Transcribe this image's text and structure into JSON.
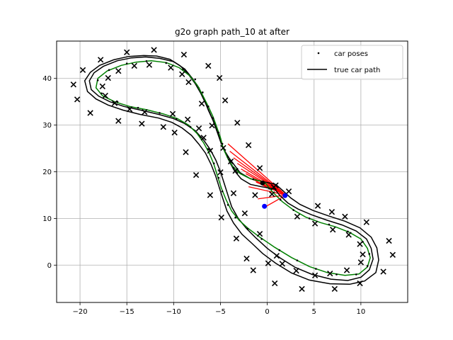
{
  "chart_data": {
    "type": "scatter",
    "title": "g2o graph path_10 at after",
    "xlabel": "",
    "ylabel": "",
    "xlim": [
      -22.5,
      15
    ],
    "ylim": [
      -8,
      48
    ],
    "xticks": [
      -20,
      -15,
      -10,
      -5,
      0,
      5,
      10
    ],
    "yticks": [
      0,
      10,
      20,
      30,
      40
    ],
    "grid": true,
    "legend": {
      "placement": "top-right",
      "entries": [
        "car poses",
        "true car path"
      ]
    },
    "colors": {
      "true_path": "#000000",
      "estimated_path": "#008000",
      "constraints": "#ff0000",
      "poses": "#000000",
      "landmarks": "#000000",
      "highlight_poses": "#0000ff",
      "grid": "#b0b0b0"
    },
    "true_path": [
      [
        0.8,
        16.3
      ],
      [
        -0.6,
        16.8
      ],
      [
        -1.8,
        17.3
      ],
      [
        -2.8,
        18.5
      ],
      [
        -3.5,
        20.2
      ],
      [
        -4.0,
        22.0
      ],
      [
        -4.5,
        24.2
      ],
      [
        -5.0,
        26.5
      ],
      [
        -5.4,
        28.8
      ],
      [
        -5.8,
        31.0
      ],
      [
        -6.3,
        33.2
      ],
      [
        -6.8,
        35.8
      ],
      [
        -7.3,
        38.0
      ],
      [
        -8.0,
        40.0
      ],
      [
        -8.8,
        42.0
      ],
      [
        -10.0,
        43.6
      ],
      [
        -11.5,
        44.3
      ],
      [
        -13.0,
        44.6
      ],
      [
        -14.5,
        44.4
      ],
      [
        -16.0,
        43.8
      ],
      [
        -17.5,
        42.6
      ],
      [
        -18.5,
        41.2
      ],
      [
        -19.0,
        39.5
      ],
      [
        -18.8,
        37.6
      ],
      [
        -18.0,
        36.2
      ],
      [
        -16.8,
        35.0
      ],
      [
        -15.3,
        34.0
      ],
      [
        -13.5,
        33.2
      ],
      [
        -11.6,
        32.3
      ],
      [
        -10.0,
        31.4
      ],
      [
        -8.8,
        30.3
      ],
      [
        -7.7,
        28.8
      ],
      [
        -6.8,
        26.8
      ],
      [
        -6.1,
        24.8
      ],
      [
        -5.5,
        22.5
      ],
      [
        -5.0,
        20.0
      ],
      [
        -4.6,
        17.5
      ],
      [
        -4.2,
        15.0
      ],
      [
        -3.8,
        12.5
      ],
      [
        -3.1,
        10.0
      ],
      [
        -2.2,
        7.8
      ],
      [
        -1.2,
        5.8
      ],
      [
        0.0,
        3.6
      ],
      [
        1.4,
        1.5
      ],
      [
        3.0,
        -0.5
      ],
      [
        4.8,
        -2.0
      ],
      [
        6.8,
        -3.0
      ],
      [
        8.6,
        -3.3
      ],
      [
        10.0,
        -2.6
      ],
      [
        10.9,
        -1.0
      ],
      [
        11.3,
        1.3
      ],
      [
        11.1,
        3.6
      ],
      [
        10.6,
        5.6
      ],
      [
        9.5,
        7.3
      ],
      [
        8.0,
        8.6
      ],
      [
        6.4,
        9.6
      ],
      [
        4.7,
        10.8
      ],
      [
        3.3,
        12.0
      ],
      [
        2.2,
        13.3
      ],
      [
        1.3,
        15.0
      ],
      [
        0.8,
        16.3
      ]
    ],
    "true_path_offset": [
      [
        0.9,
        17.3
      ],
      [
        -0.5,
        17.9
      ],
      [
        -1.8,
        18.5
      ],
      [
        -2.9,
        19.8
      ],
      [
        -3.5,
        21.4
      ],
      [
        -4.1,
        23.0
      ],
      [
        -4.7,
        25.0
      ],
      [
        -5.1,
        27.4
      ],
      [
        -5.5,
        29.8
      ],
      [
        -6.0,
        32.0
      ],
      [
        -6.5,
        34.3
      ],
      [
        -7.1,
        36.8
      ],
      [
        -7.7,
        38.9
      ],
      [
        -8.4,
        40.8
      ],
      [
        -9.3,
        42.7
      ],
      [
        -10.4,
        44.1
      ],
      [
        -11.8,
        44.8
      ],
      [
        -13.2,
        44.9
      ],
      [
        -14.8,
        44.7
      ],
      [
        -16.4,
        44.0
      ],
      [
        -17.9,
        42.8
      ],
      [
        -18.9,
        41.3
      ],
      [
        -19.5,
        39.5
      ],
      [
        -19.2,
        37.2
      ],
      [
        -18.3,
        35.6
      ],
      [
        -17.0,
        34.3
      ],
      [
        -15.4,
        33.2
      ],
      [
        -13.6,
        32.3
      ],
      [
        -11.6,
        31.5
      ],
      [
        -10.2,
        30.6
      ],
      [
        -9.1,
        29.4
      ],
      [
        -8.1,
        27.8
      ],
      [
        -7.3,
        25.9
      ],
      [
        -6.6,
        24.0
      ],
      [
        -6.0,
        21.6
      ],
      [
        -5.5,
        19.0
      ],
      [
        -5.1,
        16.5
      ],
      [
        -4.7,
        14.0
      ],
      [
        -4.3,
        11.6
      ],
      [
        -3.6,
        9.0
      ],
      [
        -2.7,
        6.6
      ],
      [
        -1.6,
        4.6
      ],
      [
        -0.5,
        2.5
      ],
      [
        0.9,
        0.4
      ],
      [
        2.6,
        -1.7
      ],
      [
        4.5,
        -3.2
      ],
      [
        6.7,
        -4.0
      ],
      [
        8.8,
        -4.1
      ],
      [
        10.4,
        -3.4
      ],
      [
        11.6,
        -1.6
      ],
      [
        11.9,
        1.1
      ],
      [
        11.7,
        3.7
      ],
      [
        11.1,
        6.0
      ],
      [
        9.9,
        8.0
      ],
      [
        8.3,
        9.4
      ],
      [
        6.6,
        10.5
      ],
      [
        4.9,
        11.7
      ],
      [
        3.5,
        13.0
      ],
      [
        2.5,
        14.4
      ],
      [
        1.7,
        15.9
      ],
      [
        0.9,
        17.3
      ]
    ],
    "estimated_path": [
      [
        -0.3,
        17.8
      ],
      [
        -1.8,
        18.5
      ],
      [
        -2.9,
        19.6
      ],
      [
        -3.7,
        21.2
      ],
      [
        -4.2,
        22.8
      ],
      [
        -4.7,
        25.0
      ],
      [
        -5.0,
        27.3
      ],
      [
        -5.4,
        29.6
      ],
      [
        -5.8,
        31.8
      ],
      [
        -6.3,
        34.0
      ],
      [
        -6.9,
        36.4
      ],
      [
        -7.5,
        38.6
      ],
      [
        -8.3,
        40.6
      ],
      [
        -9.4,
        42.3
      ],
      [
        -10.8,
        43.4
      ],
      [
        -12.4,
        43.8
      ],
      [
        -14.0,
        43.5
      ],
      [
        -15.6,
        42.8
      ],
      [
        -17.1,
        41.6
      ],
      [
        -18.1,
        40.0
      ],
      [
        -18.3,
        38.0
      ],
      [
        -17.6,
        36.3
      ],
      [
        -16.3,
        35.0
      ],
      [
        -14.7,
        34.0
      ],
      [
        -12.9,
        33.3
      ],
      [
        -11.1,
        32.4
      ],
      [
        -9.6,
        31.4
      ],
      [
        -8.4,
        30.0
      ],
      [
        -7.5,
        28.2
      ],
      [
        -6.8,
        26.2
      ],
      [
        -6.2,
        24.0
      ],
      [
        -5.7,
        21.6
      ],
      [
        -5.3,
        19.0
      ],
      [
        -4.9,
        16.5
      ],
      [
        -4.4,
        14.0
      ],
      [
        -3.8,
        11.6
      ],
      [
        -3.0,
        9.6
      ],
      [
        -2.0,
        7.8
      ],
      [
        -0.8,
        6.0
      ],
      [
        0.8,
        3.8
      ],
      [
        2.6,
        1.6
      ],
      [
        4.5,
        -0.3
      ],
      [
        6.4,
        -1.6
      ],
      [
        8.3,
        -2.2
      ],
      [
        9.8,
        -1.9
      ],
      [
        10.7,
        -0.4
      ],
      [
        11.0,
        1.6
      ],
      [
        10.7,
        3.6
      ],
      [
        10.0,
        5.6
      ],
      [
        8.8,
        7.0
      ],
      [
        7.3,
        8.2
      ],
      [
        5.7,
        9.1
      ],
      [
        4.1,
        10.3
      ],
      [
        2.8,
        11.8
      ],
      [
        1.6,
        13.6
      ],
      [
        0.6,
        15.6
      ],
      [
        -0.3,
        17.8
      ]
    ],
    "pose_markers": [
      [
        -3.6,
        20.8
      ],
      [
        -4.2,
        23.2
      ],
      [
        -4.8,
        26.0
      ],
      [
        -5.2,
        28.4
      ],
      [
        -5.8,
        31.5
      ],
      [
        -6.3,
        34.0
      ],
      [
        -6.9,
        37.0
      ],
      [
        -7.7,
        39.8
      ],
      [
        -9.0,
        42.0
      ],
      [
        -10.8,
        43.3
      ],
      [
        -12.9,
        43.7
      ],
      [
        -15.0,
        43.2
      ],
      [
        -16.9,
        41.8
      ],
      [
        -18.1,
        39.6
      ],
      [
        -17.7,
        36.8
      ],
      [
        -16.0,
        35.0
      ],
      [
        -13.8,
        33.7
      ],
      [
        -11.5,
        32.6
      ],
      [
        -9.7,
        31.3
      ],
      [
        -8.2,
        29.6
      ],
      [
        -7.1,
        27.4
      ],
      [
        -6.3,
        24.8
      ],
      [
        -5.7,
        21.8
      ],
      [
        -5.2,
        18.7
      ],
      [
        -4.8,
        15.8
      ],
      [
        -4.2,
        12.9
      ],
      [
        -3.4,
        10.2
      ],
      [
        -2.1,
        7.8
      ],
      [
        -0.6,
        5.6
      ],
      [
        1.3,
        3.2
      ],
      [
        3.2,
        1.0
      ],
      [
        5.2,
        -0.8
      ],
      [
        7.4,
        -2.0
      ],
      [
        9.5,
        -2.0
      ],
      [
        10.7,
        -0.2
      ],
      [
        10.9,
        2.4
      ],
      [
        10.2,
        5.0
      ],
      [
        8.6,
        7.2
      ],
      [
        6.6,
        8.7
      ],
      [
        4.5,
        10.0
      ],
      [
        2.8,
        11.8
      ],
      [
        1.4,
        14.0
      ],
      [
        0.2,
        16.4
      ],
      [
        -1.5,
        18.4
      ]
    ],
    "landmarks": [
      [
        -20.7,
        38.7
      ],
      [
        -20.3,
        35.5
      ],
      [
        -19.7,
        41.8
      ],
      [
        -18.9,
        32.6
      ],
      [
        -17.8,
        44.0
      ],
      [
        -17.6,
        38.3
      ],
      [
        -17.3,
        36.3
      ],
      [
        -17.0,
        40.1
      ],
      [
        -16.3,
        34.7
      ],
      [
        -15.9,
        41.6
      ],
      [
        -15.9,
        30.9
      ],
      [
        -15.0,
        45.6
      ],
      [
        -14.7,
        33.4
      ],
      [
        -14.2,
        42.7
      ],
      [
        -13.4,
        30.3
      ],
      [
        -13.1,
        32.8
      ],
      [
        -12.6,
        42.9
      ],
      [
        -12.1,
        46.1
      ],
      [
        -11.1,
        29.6
      ],
      [
        -10.3,
        42.3
      ],
      [
        -10.1,
        32.4
      ],
      [
        -9.9,
        28.4
      ],
      [
        -9.1,
        40.9
      ],
      [
        -8.9,
        45.1
      ],
      [
        -8.7,
        24.2
      ],
      [
        -8.5,
        31.2
      ],
      [
        -8.4,
        39.2
      ],
      [
        -7.6,
        19.3
      ],
      [
        -7.3,
        29.3
      ],
      [
        -7.0,
        34.6
      ],
      [
        -6.8,
        27.3
      ],
      [
        -6.3,
        42.7
      ],
      [
        -6.1,
        24.5
      ],
      [
        -6.1,
        15.0
      ],
      [
        -5.9,
        29.9
      ],
      [
        -5.1,
        40.1
      ],
      [
        -5.0,
        19.9
      ],
      [
        -4.9,
        10.2
      ],
      [
        -4.7,
        25.1
      ],
      [
        -4.5,
        35.3
      ],
      [
        -3.9,
        22.2
      ],
      [
        -3.6,
        15.4
      ],
      [
        -3.4,
        20.2
      ],
      [
        -3.3,
        5.7
      ],
      [
        -3.2,
        30.5
      ],
      [
        -2.4,
        11.1
      ],
      [
        -2.2,
        1.4
      ],
      [
        -2.0,
        25.7
      ],
      [
        -1.5,
        -1.1
      ],
      [
        -1.3,
        15.0
      ],
      [
        -0.8,
        6.7
      ],
      [
        -0.8,
        20.8
      ],
      [
        0.1,
        0.4
      ],
      [
        0.5,
        15.2
      ],
      [
        0.7,
        16.7
      ],
      [
        0.8,
        -3.9
      ],
      [
        0.9,
        17.1
      ],
      [
        1.0,
        2.0
      ],
      [
        1.6,
        0.3
      ],
      [
        2.3,
        15.8
      ],
      [
        3.1,
        -1.2
      ],
      [
        3.2,
        10.4
      ],
      [
        3.7,
        -5.1
      ],
      [
        5.1,
        -2.2
      ],
      [
        5.1,
        8.9
      ],
      [
        5.4,
        12.7
      ],
      [
        6.7,
        -1.8
      ],
      [
        6.9,
        11.4
      ],
      [
        7.0,
        7.6
      ],
      [
        7.2,
        -5.1
      ],
      [
        8.3,
        10.4
      ],
      [
        8.5,
        -1.1
      ],
      [
        8.7,
        6.5
      ],
      [
        9.9,
        4.5
      ],
      [
        9.9,
        -3.9
      ],
      [
        10.0,
        0.6
      ],
      [
        10.2,
        2.3
      ],
      [
        10.6,
        9.2
      ],
      [
        12.4,
        -1.4
      ],
      [
        13.0,
        5.2
      ],
      [
        13.4,
        2.2
      ]
    ],
    "constraint_origin": [
      2.0,
      15.0
    ],
    "constraint_targets": [
      [
        -4.2,
        26.0
      ],
      [
        -4.0,
        24.4
      ],
      [
        -3.6,
        23.0
      ],
      [
        -3.2,
        21.8
      ],
      [
        -2.8,
        20.6
      ],
      [
        -2.3,
        19.6
      ],
      [
        -1.8,
        18.6
      ],
      [
        -1.2,
        17.8
      ],
      [
        -0.6,
        17.2
      ],
      [
        -0.2,
        12.5
      ],
      [
        -1.0,
        14.2
      ],
      [
        -2.0,
        16.8
      ]
    ],
    "highlight_poses": [
      [
        -0.3,
        12.6
      ],
      [
        1.9,
        14.9
      ],
      [
        -0.5,
        17.6
      ]
    ]
  }
}
